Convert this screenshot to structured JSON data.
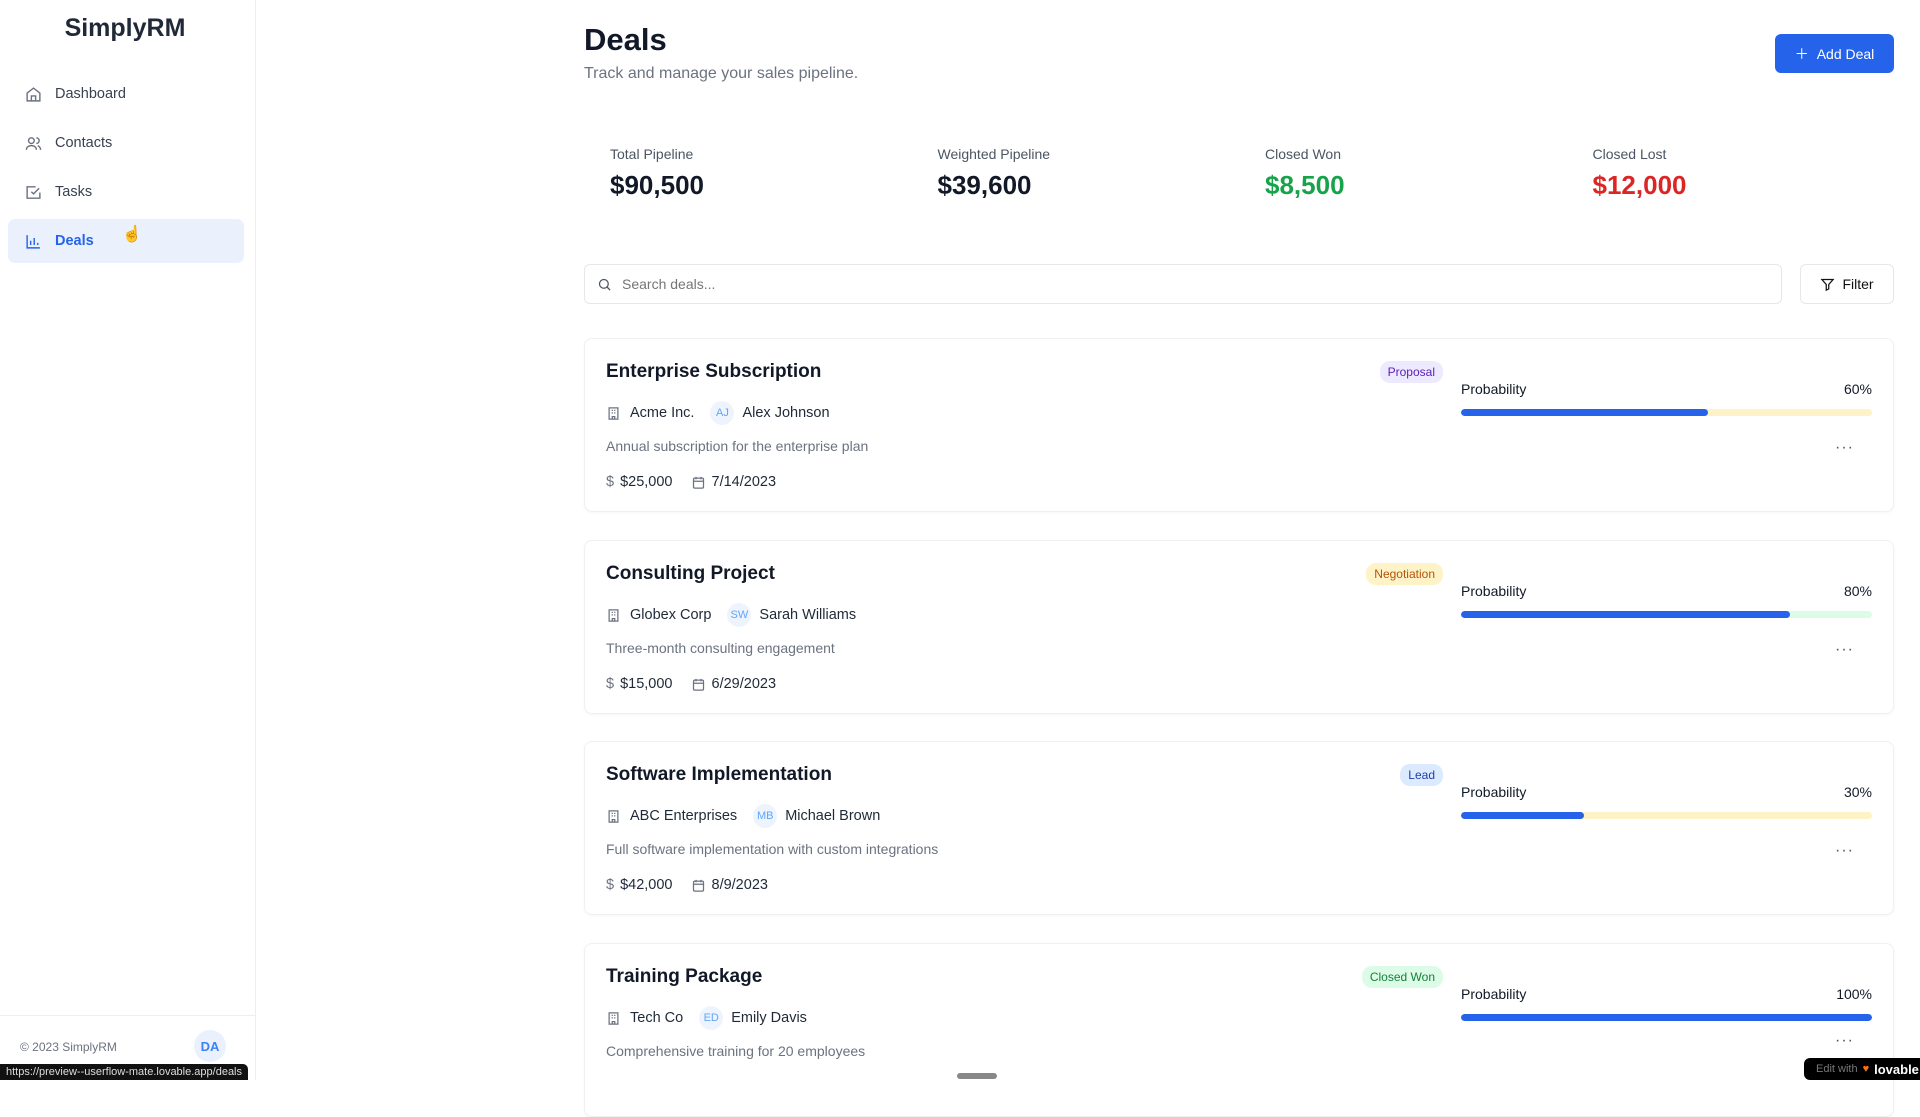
{
  "sidebar": {
    "logo": "SimplyRM",
    "items": [
      {
        "label": "Dashboard",
        "icon": "home-icon"
      },
      {
        "label": "Contacts",
        "icon": "users-icon"
      },
      {
        "label": "Tasks",
        "icon": "check-square-icon"
      },
      {
        "label": "Deals",
        "icon": "bar-chart-icon",
        "active": true
      }
    ],
    "footer": "© 2023 SimplyRM",
    "avatar": "DA"
  },
  "status_url": "https://preview--userflow-mate.lovable.app/deals",
  "header": {
    "title": "Deals",
    "subtitle": "Track and manage your sales pipeline.",
    "add_label": "Add Deal"
  },
  "stats": [
    {
      "label": "Total Pipeline",
      "value": "$90,500",
      "color": "#111827"
    },
    {
      "label": "Weighted Pipeline",
      "value": "$39,600",
      "color": "#111827"
    },
    {
      "label": "Closed Won",
      "value": "$8,500",
      "color": "#16a34a"
    },
    {
      "label": "Closed Lost",
      "value": "$12,000",
      "color": "#dc2626"
    }
  ],
  "search": {
    "placeholder": "Search deals...",
    "value": ""
  },
  "filter_label": "Filter",
  "probability_label": "Probability",
  "deals": [
    {
      "title": "Enterprise Subscription",
      "stage": "Proposal",
      "stage_bg": "#ede9fe",
      "stage_fg": "#5b21b6",
      "company": "Acme Inc.",
      "initials": "AJ",
      "contact": "Alex Johnson",
      "description": "Annual subscription for the enterprise plan",
      "amount": "$25,000",
      "date": "7/14/2023",
      "probability": 60,
      "probability_text": "60%",
      "track": "#fef3c7"
    },
    {
      "title": "Consulting Project",
      "stage": "Negotiation",
      "stage_bg": "#fef3c7",
      "stage_fg": "#b45309",
      "company": "Globex Corp",
      "initials": "SW",
      "contact": "Sarah Williams",
      "description": "Three-month consulting engagement",
      "amount": "$15,000",
      "date": "6/29/2023",
      "probability": 80,
      "probability_text": "80%",
      "track": "#dcfce7"
    },
    {
      "title": "Software Implementation",
      "stage": "Lead",
      "stage_bg": "#dbeafe",
      "stage_fg": "#1e40af",
      "company": "ABC Enterprises",
      "initials": "MB",
      "contact": "Michael Brown",
      "description": "Full software implementation with custom integrations",
      "amount": "$42,000",
      "date": "8/9/2023",
      "probability": 30,
      "probability_text": "30%",
      "track": "#fef3c7"
    },
    {
      "title": "Training Package",
      "stage": "Closed Won",
      "stage_bg": "#dcfce7",
      "stage_fg": "#15803d",
      "company": "Tech Co",
      "initials": "ED",
      "contact": "Emily Davis",
      "description": "Comprehensive training for 20 employees",
      "amount": "",
      "date": "",
      "probability": 100,
      "probability_text": "100%",
      "track": "#dcfce7"
    }
  ],
  "lovable_badge": {
    "prefix": "Edit with",
    "brand": "lovable"
  }
}
